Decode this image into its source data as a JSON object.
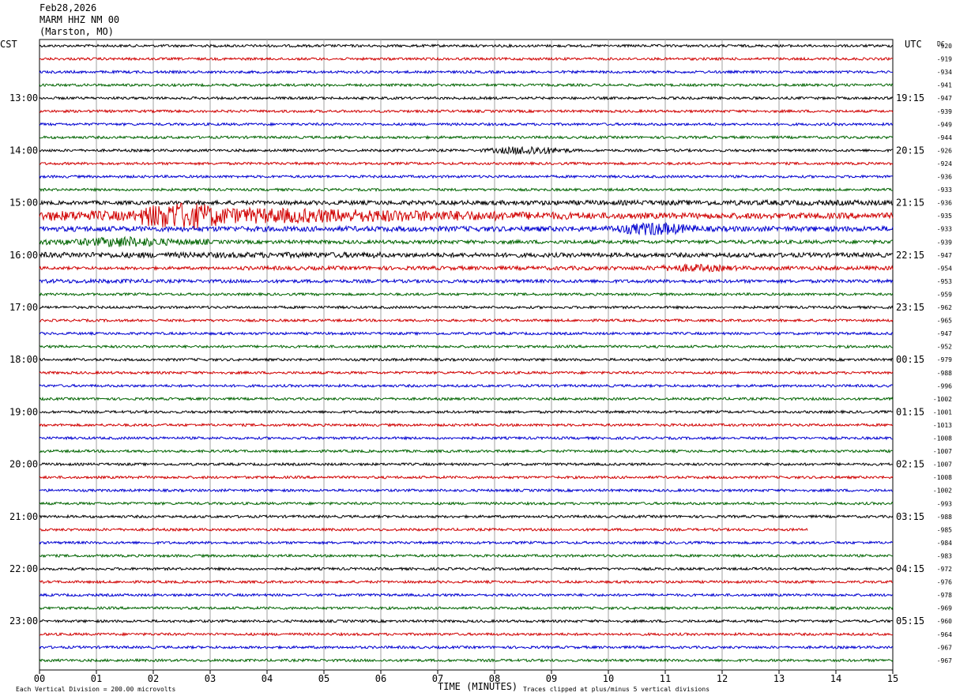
{
  "header": {
    "date": "Feb28,2026",
    "station": "MARM HHZ NM 00",
    "location": "(Marston, MO)"
  },
  "labels": {
    "left_tz": "CST",
    "right_tz": "UTC",
    "dc_label": "DC",
    "x_axis_title": "TIME (MINUTES)",
    "footer_left": "Each Vertical Division =  200.00 microvolts",
    "footer_right": "Traces clipped at plus/minus 5 vertical divisions"
  },
  "colors": {
    "trace_cycle": [
      "#000000",
      "#d00000",
      "#0000d0",
      "#006400"
    ],
    "grid": "#a0a0a0"
  },
  "chart_data": {
    "type": "line",
    "title": "MARM HHZ NM 00",
    "xlabel": "TIME (MINUTES)",
    "xlim": [
      0,
      15
    ],
    "x_ticks": [
      "00",
      "01",
      "02",
      "03",
      "04",
      "05",
      "06",
      "07",
      "08",
      "09",
      "10",
      "11",
      "12",
      "13",
      "14",
      "15"
    ],
    "rows_per_hour": 4,
    "left_hour_labels": [
      "13:00",
      "14:00",
      "15:00",
      "16:00",
      "17:00",
      "18:00",
      "19:00",
      "20:00",
      "21:00",
      "22:00",
      "23:00"
    ],
    "right_hour_labels": [
      "19:15",
      "20:15",
      "21:15",
      "22:15",
      "23:15",
      "00:15",
      "01:15",
      "02:15",
      "03:15",
      "04:15",
      "05:15"
    ],
    "dc_offsets": [
      -920,
      -919,
      -934,
      -941,
      -947,
      -939,
      -949,
      -944,
      -926,
      -924,
      -936,
      -933,
      -936,
      -935,
      -933,
      -939,
      -947,
      -954,
      -953,
      -959,
      -962,
      -965,
      -947,
      -952,
      -979,
      -988,
      -996,
      -1002,
      -1001,
      -1013,
      -1008,
      -1007,
      -1007,
      -1008,
      -1002,
      -993,
      -988,
      -985,
      -984,
      -983,
      -972,
      -976,
      -978,
      -969,
      -960,
      -964,
      -967,
      -967
    ],
    "trace_end_minutes": [
      15,
      15,
      15,
      15,
      15,
      15,
      15,
      15,
      15,
      15,
      15,
      15,
      15,
      15,
      15,
      15,
      15,
      15,
      15,
      15,
      15,
      15,
      15,
      15,
      15,
      15,
      15,
      15,
      15,
      15,
      15,
      15,
      15,
      15,
      15,
      15,
      15,
      13.5,
      15,
      15,
      15,
      15,
      15,
      15,
      15,
      15,
      15,
      15
    ],
    "activity_levels": [
      1,
      1,
      1,
      1,
      1,
      1,
      1,
      1,
      1,
      1,
      1,
      1,
      2.5,
      8,
      3,
      3,
      3,
      2,
      2,
      1,
      1,
      1,
      1,
      1,
      1,
      1,
      1,
      1,
      1,
      1,
      1,
      1,
      1,
      1,
      1,
      1,
      1,
      1,
      1,
      1,
      1,
      1,
      1,
      1,
      1,
      1,
      1,
      1
    ],
    "events": [
      {
        "row": 8,
        "minute": 8.6,
        "amplitude": 8
      },
      {
        "row": 13,
        "minute": 2.5,
        "amplitude": 16
      },
      {
        "row": 14,
        "minute": 10.8,
        "amplitude": 10
      },
      {
        "row": 15,
        "minute": 1.5,
        "amplitude": 6
      },
      {
        "row": 17,
        "minute": 11.5,
        "amplitude": 5
      }
    ],
    "vertical_division_microvolts": 200.0,
    "clip_divisions": 5
  }
}
